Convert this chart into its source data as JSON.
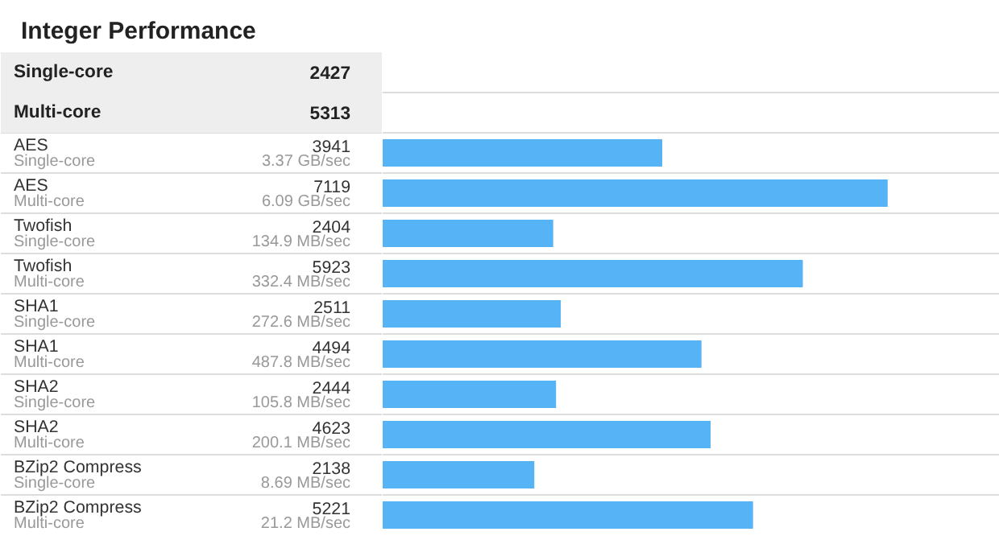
{
  "chart_data": {
    "type": "bar",
    "orientation": "horizontal",
    "title": "Integer Performance",
    "annotations": [
      "Single-core",
      "2427",
      "Multi-core",
      "5313",
      "3.37 GB/sec",
      "6.09 GB/sec",
      "134.9 MB/sec",
      "332.4 MB/sec",
      "272.6 MB/sec",
      "487.8 MB/sec",
      "105.8 MB/sec",
      "200.1 MB/sec",
      "8.69 MB/sec",
      "21.2 MB/sec"
    ],
    "categories": [
      "AES\nSingle-core",
      "AES\nMulti-core",
      "Twofish\nSingle-core",
      "Twofish\nMulti-core",
      "SHA1\nSingle-core",
      "SHA1\nMulti-core",
      "SHA2\nSingle-core",
      "SHA2\nMulti-core",
      "BZip2 Compress\nSingle-core",
      "BZip2 Compress\nMulti-core"
    ],
    "values": [
      3941,
      7119,
      2404,
      5923,
      2511,
      4494,
      2444,
      4623,
      2138,
      5221
    ],
    "data_labels": true,
    "color": "#55b3f6",
    "xlim": [
      0,
      8700
    ],
    "tick_labels": false,
    "grid": true
  }
}
